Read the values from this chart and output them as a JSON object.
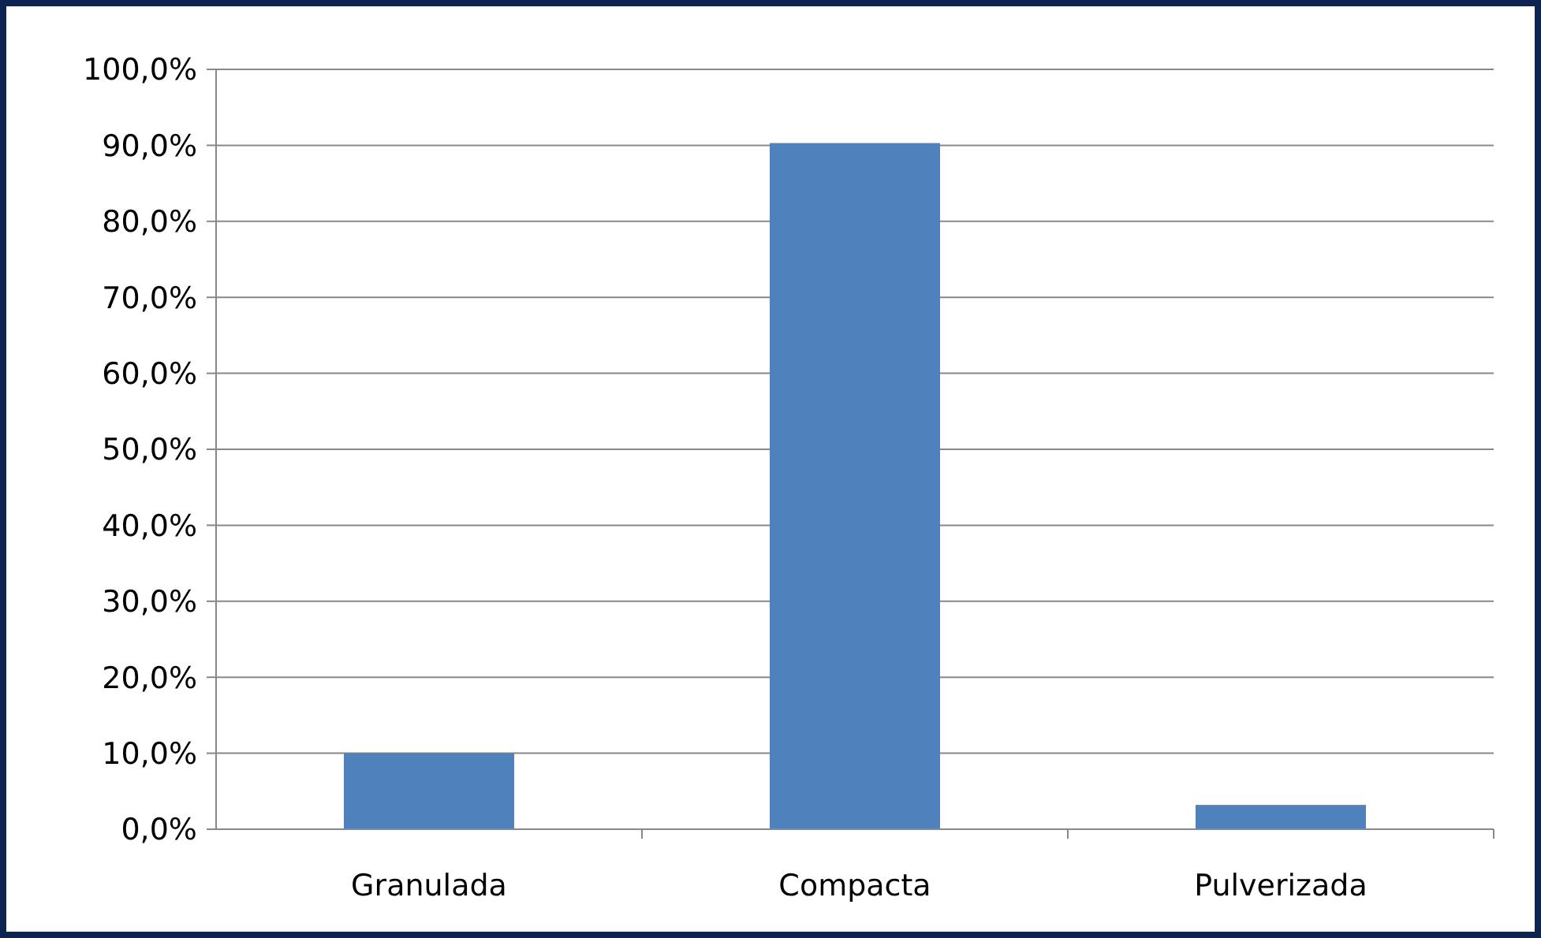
{
  "chart_data": {
    "type": "bar",
    "categories": [
      "Granulada",
      "Compacta",
      "Pulverizada"
    ],
    "values": [
      10.0,
      90.3,
      3.2
    ],
    "color": "#4f81bd",
    "ylim": [
      0,
      100
    ],
    "yticks": [
      {
        "value": 0,
        "label": "0,0%"
      },
      {
        "value": 10,
        "label": "10,0%"
      },
      {
        "value": 20,
        "label": "20,0%"
      },
      {
        "value": 30,
        "label": "30,0%"
      },
      {
        "value": 40,
        "label": "40,0%"
      },
      {
        "value": 50,
        "label": "50,0%"
      },
      {
        "value": 60,
        "label": "60,0%"
      },
      {
        "value": 70,
        "label": "70,0%"
      },
      {
        "value": 80,
        "label": "80,0%"
      },
      {
        "value": 90,
        "label": "90,0%"
      },
      {
        "value": 100,
        "label": "100,0%"
      }
    ],
    "grid": "y"
  }
}
